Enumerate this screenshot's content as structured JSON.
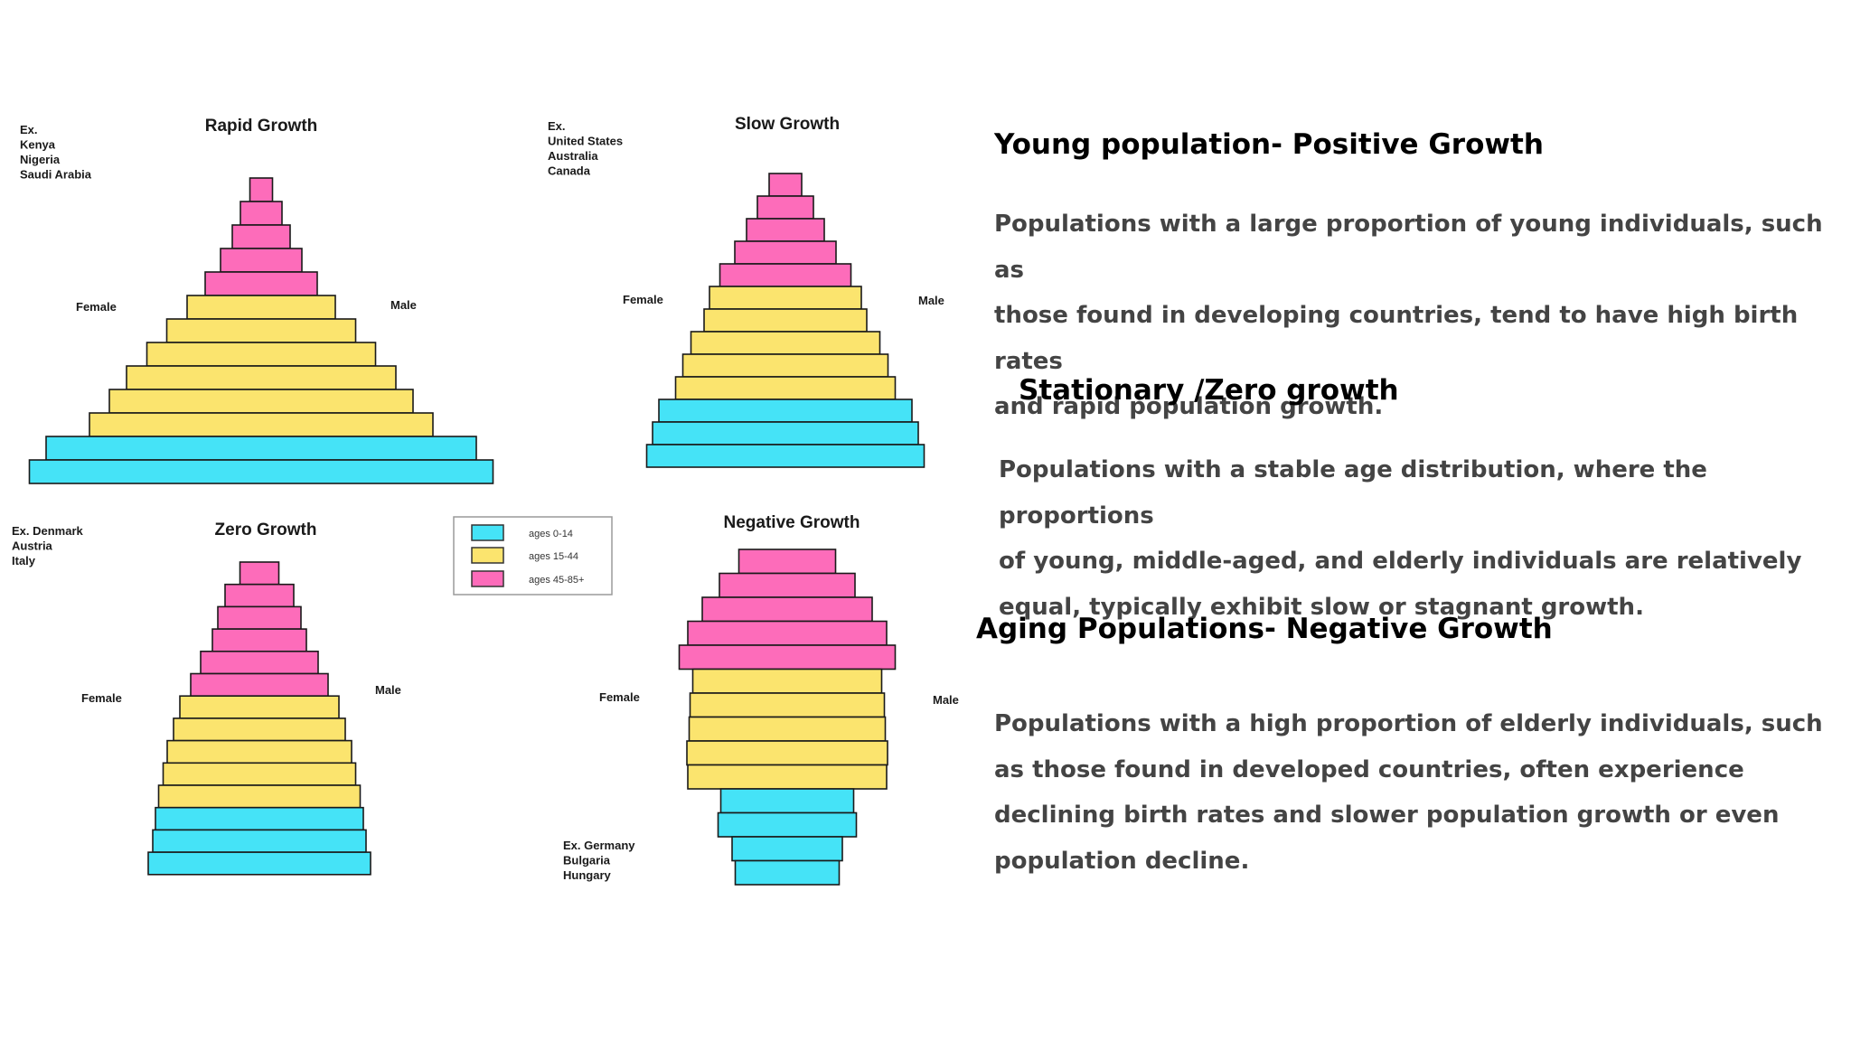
{
  "legend": {
    "items": [
      {
        "label": "ages 0-14",
        "color": "#45e3f7"
      },
      {
        "label": "ages 15-44",
        "color": "#fbe46e"
      },
      {
        "label": "ages 45-85+",
        "color": "#fd6cba"
      }
    ]
  },
  "chart_data": [
    {
      "type": "population-pyramid",
      "title": "Rapid Growth",
      "examples": [
        "Ex.",
        "Kenya",
        "Nigeria",
        "Saudi Arabia"
      ],
      "left_label": "Female",
      "right_label": "Male",
      "bars_top_to_bottom": [
        {
          "group": "45-85+",
          "width": 25
        },
        {
          "group": "45-85+",
          "width": 46
        },
        {
          "group": "45-85+",
          "width": 64
        },
        {
          "group": "45-85+",
          "width": 90
        },
        {
          "group": "45-85+",
          "width": 124
        },
        {
          "group": "15-44",
          "width": 164
        },
        {
          "group": "15-44",
          "width": 209
        },
        {
          "group": "15-44",
          "width": 253
        },
        {
          "group": "15-44",
          "width": 298
        },
        {
          "group": "15-44",
          "width": 336
        },
        {
          "group": "15-44",
          "width": 380
        },
        {
          "group": "0-14",
          "width": 476
        },
        {
          "group": "0-14",
          "width": 513
        }
      ]
    },
    {
      "type": "population-pyramid",
      "title": "Slow Growth",
      "examples": [
        "Ex.",
        "United States",
        "Australia",
        "Canada"
      ],
      "left_label": "Female",
      "right_label": "Male",
      "bars_top_to_bottom": [
        {
          "group": "45-85+",
          "width": 36
        },
        {
          "group": "45-85+",
          "width": 62
        },
        {
          "group": "45-85+",
          "width": 86
        },
        {
          "group": "45-85+",
          "width": 112
        },
        {
          "group": "45-85+",
          "width": 145
        },
        {
          "group": "15-44",
          "width": 168
        },
        {
          "group": "15-44",
          "width": 180
        },
        {
          "group": "15-44",
          "width": 209
        },
        {
          "group": "15-44",
          "width": 227
        },
        {
          "group": "15-44",
          "width": 243
        },
        {
          "group": "0-14",
          "width": 280
        },
        {
          "group": "0-14",
          "width": 294
        },
        {
          "group": "0-14",
          "width": 307
        }
      ]
    },
    {
      "type": "population-pyramid",
      "title": "Zero Growth",
      "examples": [
        "Ex. Denmark",
        "Austria",
        "Italy"
      ],
      "left_label": "Female",
      "right_label": "Male",
      "bars_top_to_bottom": [
        {
          "group": "45-85+",
          "width": 43
        },
        {
          "group": "45-85+",
          "width": 76
        },
        {
          "group": "45-85+",
          "width": 92
        },
        {
          "group": "45-85+",
          "width": 104
        },
        {
          "group": "45-85+",
          "width": 130
        },
        {
          "group": "45-85+",
          "width": 152
        },
        {
          "group": "15-44",
          "width": 176
        },
        {
          "group": "15-44",
          "width": 190
        },
        {
          "group": "15-44",
          "width": 204
        },
        {
          "group": "15-44",
          "width": 213
        },
        {
          "group": "15-44",
          "width": 223
        },
        {
          "group": "0-14",
          "width": 230
        },
        {
          "group": "0-14",
          "width": 236
        },
        {
          "group": "0-14",
          "width": 246
        }
      ]
    },
    {
      "type": "population-pyramid",
      "title": "Negative Growth",
      "examples": [
        "Ex. Germany",
        "Bulgaria",
        "Hungary"
      ],
      "left_label": "Female",
      "right_label": "Male",
      "bars_top_to_bottom": [
        {
          "group": "45-85+",
          "width": 107
        },
        {
          "group": "45-85+",
          "width": 150
        },
        {
          "group": "45-85+",
          "width": 188
        },
        {
          "group": "45-85+",
          "width": 220
        },
        {
          "group": "45-85+",
          "width": 239
        },
        {
          "group": "15-44",
          "width": 209
        },
        {
          "group": "15-44",
          "width": 215
        },
        {
          "group": "15-44",
          "width": 217
        },
        {
          "group": "15-44",
          "width": 222
        },
        {
          "group": "15-44",
          "width": 220
        },
        {
          "group": "0-14",
          "width": 147
        },
        {
          "group": "0-14",
          "width": 153
        },
        {
          "group": "0-14",
          "width": 122
        },
        {
          "group": "0-14",
          "width": 115
        }
      ]
    }
  ],
  "sections": [
    {
      "heading": "Young population- Positive Growth",
      "lines": [
        "Populations with a large proportion of young individuals, such as",
        "those found in developing countries, tend to have high birth rates",
        "and rapid population growth."
      ]
    },
    {
      "heading": "Stationary /Zero growth",
      "lines": [
        "Populations with a stable age distribution, where the proportions",
        "of young, middle-aged, and elderly individuals are relatively",
        "equal, typically exhibit slow or stagnant growth."
      ]
    },
    {
      "heading": "Aging Populations- Negative Growth",
      "lines": [
        "Populations with a high proportion of elderly individuals, such",
        "as those found in developed countries, often experience",
        "declining birth rates and slower population growth or even",
        "population decline."
      ]
    }
  ]
}
